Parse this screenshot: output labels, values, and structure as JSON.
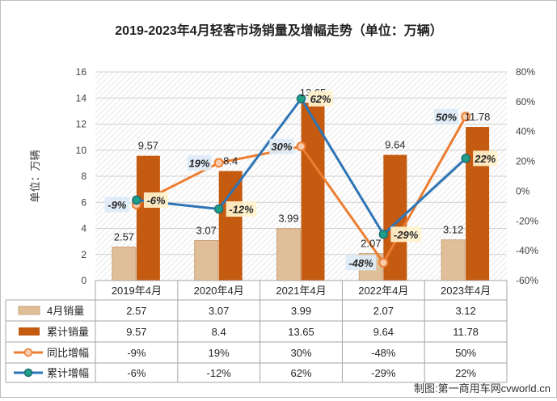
{
  "chart_data": {
    "type": "bar",
    "title": "2019-2023年4月轻客市场销量及增幅走势（单位：万辆）",
    "ylabel": "单位：万辆",
    "ylim": [
      0,
      16
    ],
    "y_ticks": [
      "0",
      "2",
      "4",
      "6",
      "8",
      "10",
      "12",
      "14",
      "16"
    ],
    "y2lim": [
      -60,
      80
    ],
    "y2_ticks": [
      "-60%",
      "-40%",
      "-20%",
      "0%",
      "20%",
      "40%",
      "60%",
      "80%"
    ],
    "categories": [
      "2019年4月",
      "2020年4月",
      "2021年4月",
      "2022年4月",
      "2023年4月"
    ],
    "series": [
      {
        "name": "4月销量",
        "kind": "bar",
        "axis": "left",
        "color": "#e0bf98",
        "values": [
          2.57,
          3.07,
          3.99,
          2.07,
          3.12
        ],
        "labels": [
          "2.57",
          "3.07",
          "3.99",
          "2.07",
          "3.12"
        ],
        "table": [
          "2.57",
          "3.07",
          "3.99",
          "2.07",
          "3.12"
        ]
      },
      {
        "name": "累计销量",
        "kind": "bar",
        "axis": "left",
        "color": "#c55a11",
        "values": [
          9.57,
          8.4,
          13.65,
          9.64,
          11.78
        ],
        "labels": [
          "9.57",
          "8.4",
          "13.65",
          "9.64",
          "11.78"
        ],
        "table": [
          "9.57",
          "8.4",
          "13.65",
          "9.64",
          "11.78"
        ]
      },
      {
        "name": "同比增幅",
        "kind": "line",
        "axis": "right",
        "color": "#ed7d31",
        "values": [
          -9,
          19,
          30,
          -48,
          50
        ],
        "labels": [
          "-9%",
          "19%",
          "30%",
          "-48%",
          "50%"
        ],
        "table": [
          "-9%",
          "19%",
          "30%",
          "-48%",
          "50%"
        ]
      },
      {
        "name": "累计增幅",
        "kind": "line",
        "axis": "right",
        "color": "#2e75b6",
        "values": [
          -6,
          -12,
          62,
          -29,
          22
        ],
        "labels": [
          "-6%",
          "-12%",
          "62%",
          "-29%",
          "22%"
        ],
        "table": [
          "-6%",
          "-12%",
          "62%",
          "-29%",
          "22%"
        ]
      }
    ],
    "legend": "data-table-bottom",
    "grid": true
  },
  "credit": "制图:第一商用车网cvworld.cn"
}
